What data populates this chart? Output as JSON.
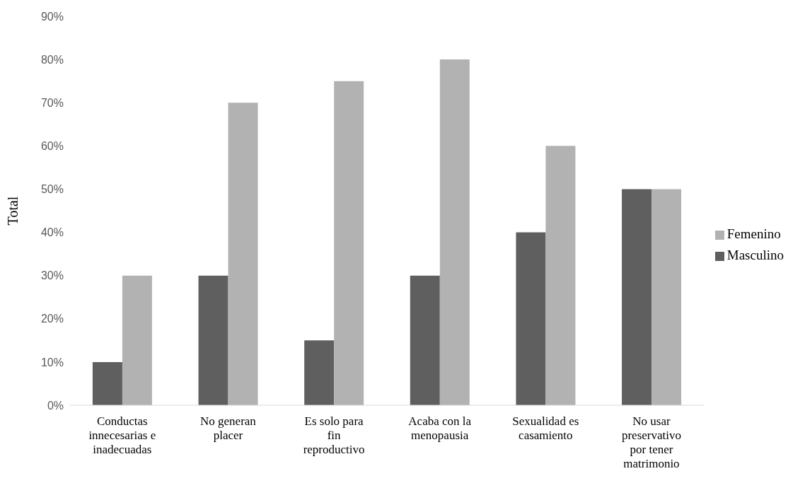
{
  "chart_data": {
    "type": "bar",
    "ylabel": "Total",
    "categories": [
      "Conductas innecesarias e inadecuadas",
      "No generan placer",
      "Es solo para fin reproductivo",
      "Acaba con la menopausia",
      "Sexualidad es casamiento",
      "No usar preservativo por tener matrimonio"
    ],
    "series": [
      {
        "name": "Masculino",
        "color": "#5f5f5f",
        "values": [
          10,
          30,
          15,
          30,
          40,
          50
        ]
      },
      {
        "name": "Femenino",
        "color": "#b2b2b2",
        "values": [
          30,
          70,
          75,
          80,
          60,
          50
        ]
      }
    ],
    "ylim": [
      0,
      90
    ],
    "yticks": [
      {
        "value": 0,
        "label": "0%"
      },
      {
        "value": 10,
        "label": "10%"
      },
      {
        "value": 20,
        "label": "20%"
      },
      {
        "value": 30,
        "label": "30%"
      },
      {
        "value": 40,
        "label": "40%"
      },
      {
        "value": 50,
        "label": "50%"
      },
      {
        "value": 60,
        "label": "60%"
      },
      {
        "value": 70,
        "label": "70%"
      },
      {
        "value": 80,
        "label": "80%"
      },
      {
        "value": 90,
        "label": "90%"
      }
    ],
    "grid": false,
    "legend": "right"
  }
}
